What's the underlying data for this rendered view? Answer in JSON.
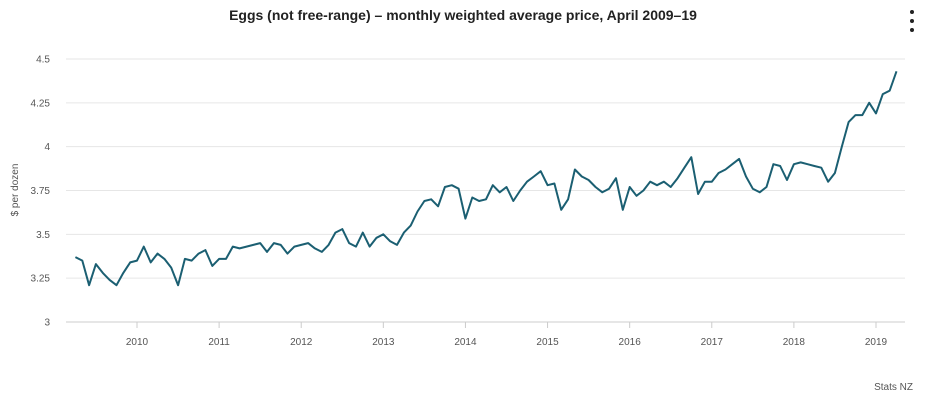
{
  "credit": "Stats NZ",
  "menu_icon": "more-vertical-icon",
  "colors": {
    "line": "#1b5f72",
    "grid": "#e6e6e6",
    "axis": "#cccccc"
  },
  "chart_data": {
    "type": "line",
    "title": "Eggs (not free-range) – monthly weighted average price, April 2009–19",
    "xlabel": "",
    "ylabel": "$ per dozen",
    "ylim": [
      3,
      4.5
    ],
    "yticks": [
      3,
      3.25,
      3.5,
      3.75,
      4,
      4.25,
      4.5
    ],
    "ytick_labels": [
      "3",
      "3.25",
      "3.5",
      "3.75",
      "4",
      "4.25",
      "4.5"
    ],
    "xticks": [
      "2010",
      "2011",
      "2012",
      "2013",
      "2014",
      "2015",
      "2016",
      "2017",
      "2018",
      "2019"
    ],
    "grid": true,
    "legend": "none",
    "series": [
      {
        "x_start": "2009-04",
        "frequency": "monthly",
        "values": [
          3.37,
          3.35,
          3.21,
          3.33,
          3.28,
          3.24,
          3.21,
          3.28,
          3.34,
          3.35,
          3.43,
          3.34,
          3.39,
          3.36,
          3.31,
          3.21,
          3.36,
          3.35,
          3.39,
          3.41,
          3.32,
          3.36,
          3.36,
          3.43,
          3.42,
          3.43,
          3.44,
          3.45,
          3.4,
          3.45,
          3.44,
          3.39,
          3.43,
          3.44,
          3.45,
          3.42,
          3.4,
          3.44,
          3.51,
          3.53,
          3.45,
          3.43,
          3.51,
          3.43,
          3.48,
          3.5,
          3.46,
          3.44,
          3.51,
          3.55,
          3.63,
          3.69,
          3.7,
          3.66,
          3.77,
          3.78,
          3.76,
          3.59,
          3.71,
          3.69,
          3.7,
          3.78,
          3.74,
          3.77,
          3.69,
          3.75,
          3.8,
          3.83,
          3.86,
          3.78,
          3.79,
          3.64,
          3.7,
          3.87,
          3.83,
          3.81,
          3.77,
          3.74,
          3.76,
          3.82,
          3.64,
          3.77,
          3.72,
          3.75,
          3.8,
          3.78,
          3.8,
          3.77,
          3.82,
          3.88,
          3.94,
          3.73,
          3.8,
          3.8,
          3.85,
          3.87,
          3.9,
          3.93,
          3.83,
          3.76,
          3.74,
          3.77,
          3.9,
          3.89,
          3.81,
          3.9,
          3.91,
          3.9,
          3.89,
          3.88,
          3.8,
          3.85,
          4.0,
          4.14,
          4.18,
          4.18,
          4.25,
          4.19,
          4.3,
          4.32,
          4.43
        ]
      }
    ]
  }
}
